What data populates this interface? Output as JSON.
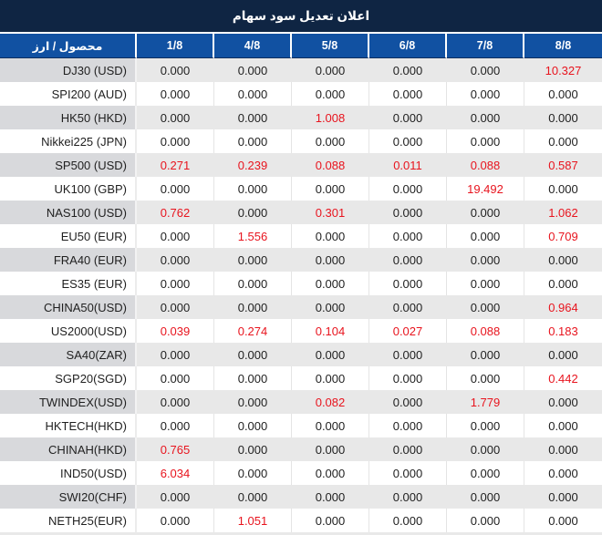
{
  "title": "اعلان تعديل سود سهام",
  "colors": {
    "title_bar_bg": "#0f2543",
    "header_bg": "#1151a2",
    "header_text": "#ffffff",
    "gray_row_label_bg": "#d8d9dc",
    "gray_row_value_bg": "#e8e8e8",
    "white_row_bg": "#ffffff",
    "value_text": "#1f1f1f",
    "highlight_red": "#e8141e"
  },
  "table": {
    "product_currency_header": "محصول / ارز",
    "date_columns": [
      "1/8",
      "4/8",
      "5/8",
      "6/8",
      "7/8",
      "8/8"
    ],
    "rows": [
      {
        "label": "DJ30 (USD)",
        "values": [
          "0.000",
          "0.000",
          "0.000",
          "0.000",
          "0.000",
          "10.327"
        ],
        "red": [
          0,
          0,
          0,
          0,
          0,
          1
        ]
      },
      {
        "label": "SPI200 (AUD)",
        "values": [
          "0.000",
          "0.000",
          "0.000",
          "0.000",
          "0.000",
          "0.000"
        ],
        "red": [
          0,
          0,
          0,
          0,
          0,
          0
        ]
      },
      {
        "label": "HK50 (HKD)",
        "values": [
          "0.000",
          "0.000",
          "1.008",
          "0.000",
          "0.000",
          "0.000"
        ],
        "red": [
          0,
          0,
          1,
          0,
          0,
          0
        ]
      },
      {
        "label": "Nikkei225 (JPN)",
        "values": [
          "0.000",
          "0.000",
          "0.000",
          "0.000",
          "0.000",
          "0.000"
        ],
        "red": [
          0,
          0,
          0,
          0,
          0,
          0
        ]
      },
      {
        "label": "SP500 (USD)",
        "values": [
          "0.271",
          "0.239",
          "0.088",
          "0.011",
          "0.088",
          "0.587"
        ],
        "red": [
          1,
          1,
          1,
          1,
          1,
          1
        ]
      },
      {
        "label": "UK100 (GBP)",
        "values": [
          "0.000",
          "0.000",
          "0.000",
          "0.000",
          "19.492",
          "0.000"
        ],
        "red": [
          0,
          0,
          0,
          0,
          1,
          0
        ]
      },
      {
        "label": "NAS100 (USD)",
        "values": [
          "0.762",
          "0.000",
          "0.301",
          "0.000",
          "0.000",
          "1.062"
        ],
        "red": [
          1,
          0,
          1,
          0,
          0,
          1
        ]
      },
      {
        "label": "EU50 (EUR)",
        "values": [
          "0.000",
          "1.556",
          "0.000",
          "0.000",
          "0.000",
          "0.709"
        ],
        "red": [
          0,
          1,
          0,
          0,
          0,
          1
        ]
      },
      {
        "label": "FRA40 (EUR)",
        "values": [
          "0.000",
          "0.000",
          "0.000",
          "0.000",
          "0.000",
          "0.000"
        ],
        "red": [
          0,
          0,
          0,
          0,
          0,
          0
        ]
      },
      {
        "label": "ES35 (EUR)",
        "values": [
          "0.000",
          "0.000",
          "0.000",
          "0.000",
          "0.000",
          "0.000"
        ],
        "red": [
          0,
          0,
          0,
          0,
          0,
          0
        ]
      },
      {
        "label": "CHINA50(USD)",
        "values": [
          "0.000",
          "0.000",
          "0.000",
          "0.000",
          "0.000",
          "0.964"
        ],
        "red": [
          0,
          0,
          0,
          0,
          0,
          1
        ]
      },
      {
        "label": "US2000(USD)",
        "values": [
          "0.039",
          "0.274",
          "0.104",
          "0.027",
          "0.088",
          "0.183"
        ],
        "red": [
          1,
          1,
          1,
          1,
          1,
          1
        ]
      },
      {
        "label": "SA40(ZAR)",
        "values": [
          "0.000",
          "0.000",
          "0.000",
          "0.000",
          "0.000",
          "0.000"
        ],
        "red": [
          0,
          0,
          0,
          0,
          0,
          0
        ]
      },
      {
        "label": "SGP20(SGD)",
        "values": [
          "0.000",
          "0.000",
          "0.000",
          "0.000",
          "0.000",
          "0.442"
        ],
        "red": [
          0,
          0,
          0,
          0,
          0,
          1
        ]
      },
      {
        "label": "TWINDEX(USD)",
        "values": [
          "0.000",
          "0.000",
          "0.082",
          "0.000",
          "1.779",
          "0.000"
        ],
        "red": [
          0,
          0,
          1,
          0,
          1,
          0
        ]
      },
      {
        "label": "HKTECH(HKD)",
        "values": [
          "0.000",
          "0.000",
          "0.000",
          "0.000",
          "0.000",
          "0.000"
        ],
        "red": [
          0,
          0,
          0,
          0,
          0,
          0
        ]
      },
      {
        "label": "CHINAH(HKD)",
        "values": [
          "0.765",
          "0.000",
          "0.000",
          "0.000",
          "0.000",
          "0.000"
        ],
        "red": [
          1,
          0,
          0,
          0,
          0,
          0
        ]
      },
      {
        "label": "IND50(USD)",
        "values": [
          "6.034",
          "0.000",
          "0.000",
          "0.000",
          "0.000",
          "0.000"
        ],
        "red": [
          1,
          0,
          0,
          0,
          0,
          0
        ]
      },
      {
        "label": "SWI20(CHF)",
        "values": [
          "0.000",
          "0.000",
          "0.000",
          "0.000",
          "0.000",
          "0.000"
        ],
        "red": [
          0,
          0,
          0,
          0,
          0,
          0
        ]
      },
      {
        "label": "NETH25(EUR)",
        "values": [
          "0.000",
          "1.051",
          "0.000",
          "0.000",
          "0.000",
          "0.000"
        ],
        "red": [
          0,
          1,
          0,
          0,
          0,
          0
        ]
      }
    ]
  }
}
